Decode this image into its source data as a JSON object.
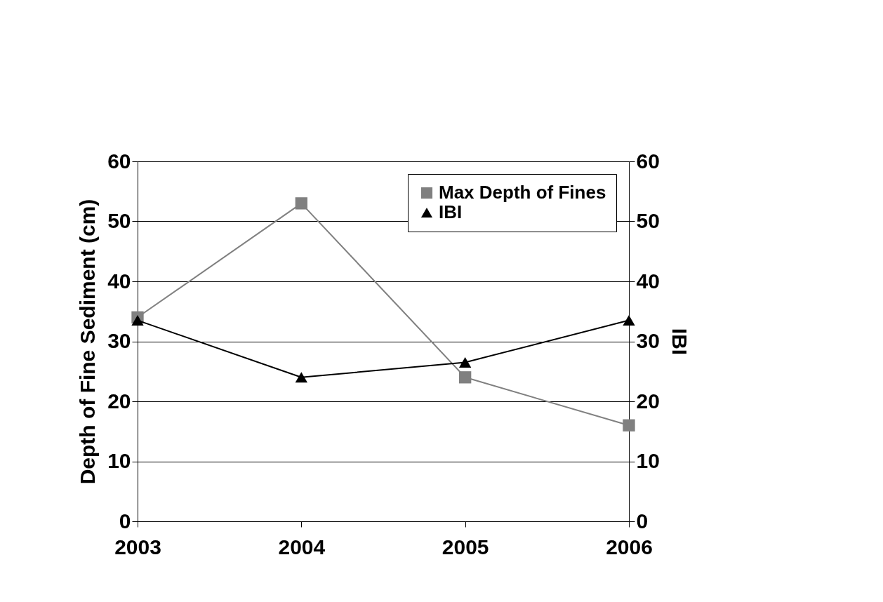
{
  "chart_data": {
    "type": "line",
    "categories": [
      "2003",
      "2004",
      "2005",
      "2006"
    ],
    "ylabel": "Depth of Fine Sediment (cm)",
    "y2label": "IBI",
    "series": [
      {
        "name": "Max Depth of Fines",
        "color": "#808080",
        "marker": "square",
        "values": [
          34,
          53,
          24,
          16
        ]
      },
      {
        "name": "IBI",
        "color": "#000000",
        "marker": "triangle",
        "axis": "y2",
        "values": [
          33.5,
          24,
          26.5,
          33.5
        ]
      }
    ],
    "ylim": [
      0,
      60
    ],
    "yticks": [
      0,
      10,
      20,
      30,
      40,
      50,
      60
    ],
    "y2lim": [
      0,
      60
    ],
    "y2ticks": [
      0,
      10,
      20,
      30,
      40,
      50,
      60
    ],
    "grid": "y",
    "legend": "top right",
    "line_style": "solid"
  }
}
